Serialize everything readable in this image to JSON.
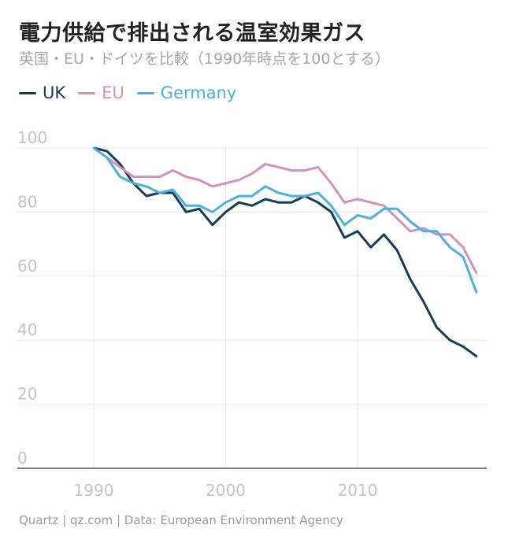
{
  "title": "電力供給で排出される温室効果ガス",
  "subtitle": "英国・EU・ドイツを比較（1990年時点を100とする）",
  "source": "Quartz | qz.com | Data: European Environment Agency",
  "chart_data": {
    "type": "line",
    "title": "電力供給で排出される温室効果ガス",
    "subtitle": "英国・EU・ドイツを比較（1990年時点を100とする）",
    "xlabel": "",
    "ylabel": "",
    "xlim": [
      1984,
      2020
    ],
    "ylim": [
      0,
      100
    ],
    "xticks": [
      1990,
      2000,
      2010
    ],
    "yticks": [
      0,
      20,
      40,
      60,
      80,
      100
    ],
    "grid": true,
    "legend_position": "top-left",
    "x": [
      1990,
      1991,
      1992,
      1993,
      1994,
      1995,
      1996,
      1997,
      1998,
      1999,
      2000,
      2001,
      2002,
      2003,
      2004,
      2005,
      2006,
      2007,
      2008,
      2009,
      2010,
      2011,
      2012,
      2013,
      2014,
      2015,
      2016,
      2017,
      2018,
      2019
    ],
    "series": [
      {
        "name": "UK",
        "color": "#163d57",
        "values": [
          100,
          99,
          95,
          89,
          85,
          86,
          86,
          80,
          81,
          76,
          80,
          83,
          82,
          84,
          83,
          83,
          85,
          83,
          80,
          72,
          74,
          69,
          73,
          68,
          59,
          52,
          44,
          40,
          38,
          35
        ]
      },
      {
        "name": "EU",
        "color": "#d391bf",
        "values": [
          100,
          97,
          94,
          91,
          91,
          91,
          93,
          91,
          90,
          88,
          89,
          90,
          92,
          95,
          94,
          93,
          93,
          94,
          89,
          83,
          84,
          83,
          82,
          78,
          74,
          75,
          73,
          73,
          69,
          61
        ]
      },
      {
        "name": "Germany",
        "color": "#4fb0dc",
        "values": [
          100,
          97,
          91,
          89,
          88,
          86,
          87,
          82,
          82,
          80,
          83,
          85,
          85,
          88,
          86,
          85,
          85,
          86,
          82,
          76,
          79,
          78,
          81,
          81,
          77,
          74,
          74,
          69,
          66,
          55
        ]
      }
    ]
  }
}
